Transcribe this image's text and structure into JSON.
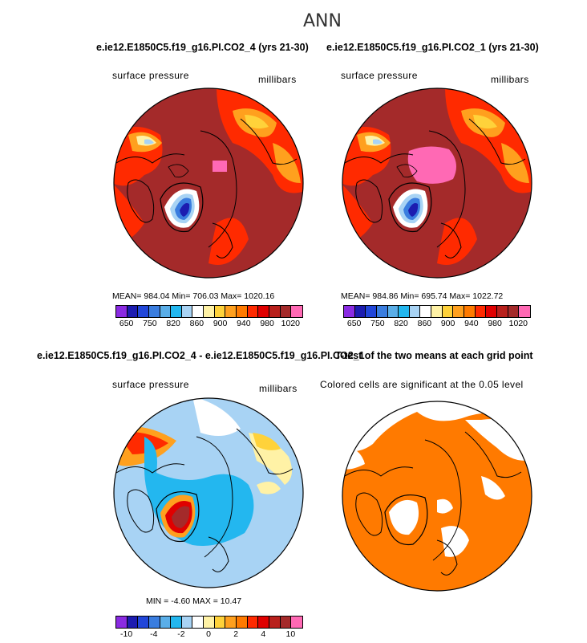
{
  "title": "ANN",
  "panels": [
    {
      "title": "e.ie12.E1850C5.f19_g16.PI.CO2_4 (yrs 21-30)",
      "left_label": "surface pressure",
      "right_label": "millibars",
      "stats": "MEAN= 984.04   Min= 706.03   Max= 1020.16",
      "colorbar": {
        "colors": [
          "#8a2be2",
          "#1c1cb0",
          "#2146d9",
          "#3a7ddf",
          "#5aaee8",
          "#23b7ef",
          "#a8d3f4",
          "#ffffff",
          "#fff2a6",
          "#ffd23a",
          "#ffa01e",
          "#ff7a00",
          "#ff2a00",
          "#e00000",
          "#b8201c",
          "#a42a2a",
          "#ff69b4"
        ],
        "labels": [
          "650",
          "750",
          "820",
          "860",
          "900",
          "940",
          "980",
          "1020"
        ]
      }
    },
    {
      "title": "e.ie12.E1850C5.f19_g16.PI.CO2_1 (yrs 21-30)",
      "left_label": "surface pressure",
      "right_label": "millibars",
      "stats": "MEAN= 984.86   Min= 695.74   Max= 1022.72",
      "colorbar": {
        "colors": [
          "#8a2be2",
          "#1c1cb0",
          "#2146d9",
          "#3a7ddf",
          "#5aaee8",
          "#23b7ef",
          "#a8d3f4",
          "#ffffff",
          "#fff2a6",
          "#ffd23a",
          "#ffa01e",
          "#ff7a00",
          "#ff2a00",
          "#e00000",
          "#b8201c",
          "#a42a2a",
          "#ff69b4"
        ],
        "labels": [
          "650",
          "750",
          "820",
          "860",
          "900",
          "940",
          "980",
          "1020"
        ]
      }
    },
    {
      "title": "e.ie12.E1850C5.f19_g16.PI.CO2_4 - e.ie12.E1850C5.f19_g16.PI.CO2_1",
      "left_label": "surface pressure",
      "right_label": "millibars",
      "stats": "MIN =   -4.60 MAX =   10.47",
      "colorbar": {
        "colors": [
          "#8a2be2",
          "#1c1cb0",
          "#2146d9",
          "#3a7ddf",
          "#5aaee8",
          "#23b7ef",
          "#a8d3f4",
          "#ffffff",
          "#fff2a6",
          "#ffd23a",
          "#ffa01e",
          "#ff7a00",
          "#ff2a00",
          "#e00000",
          "#b8201c",
          "#a42a2a",
          "#ff69b4"
        ],
        "labels": [
          "-10",
          "-4",
          "-2",
          "0",
          "2",
          "4",
          "10"
        ]
      }
    },
    {
      "title": "T-test of the two means at each grid point",
      "left_label": "Colored cells are significant at the 0.05 level"
    }
  ]
}
